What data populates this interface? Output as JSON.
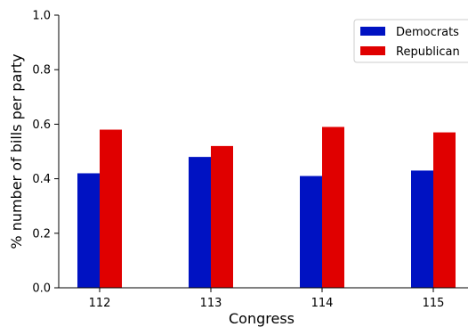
{
  "chart_data": {
    "type": "bar",
    "title": "",
    "xlabel": "Congress",
    "ylabel": "% number of bills per party",
    "categories": [
      "112",
      "113",
      "114",
      "115"
    ],
    "series": [
      {
        "name": "Democrats",
        "color": "#0012c2",
        "values": [
          0.42,
          0.48,
          0.41,
          0.43
        ]
      },
      {
        "name": "Republican",
        "color": "#e00000",
        "values": [
          0.58,
          0.52,
          0.59,
          0.57
        ]
      }
    ],
    "ylim": [
      0,
      1.0
    ],
    "yticks": [
      "0.0",
      "0.2",
      "0.4",
      "0.6",
      "0.8",
      "1.0"
    ],
    "grid": false,
    "legend_position": "top-right"
  }
}
